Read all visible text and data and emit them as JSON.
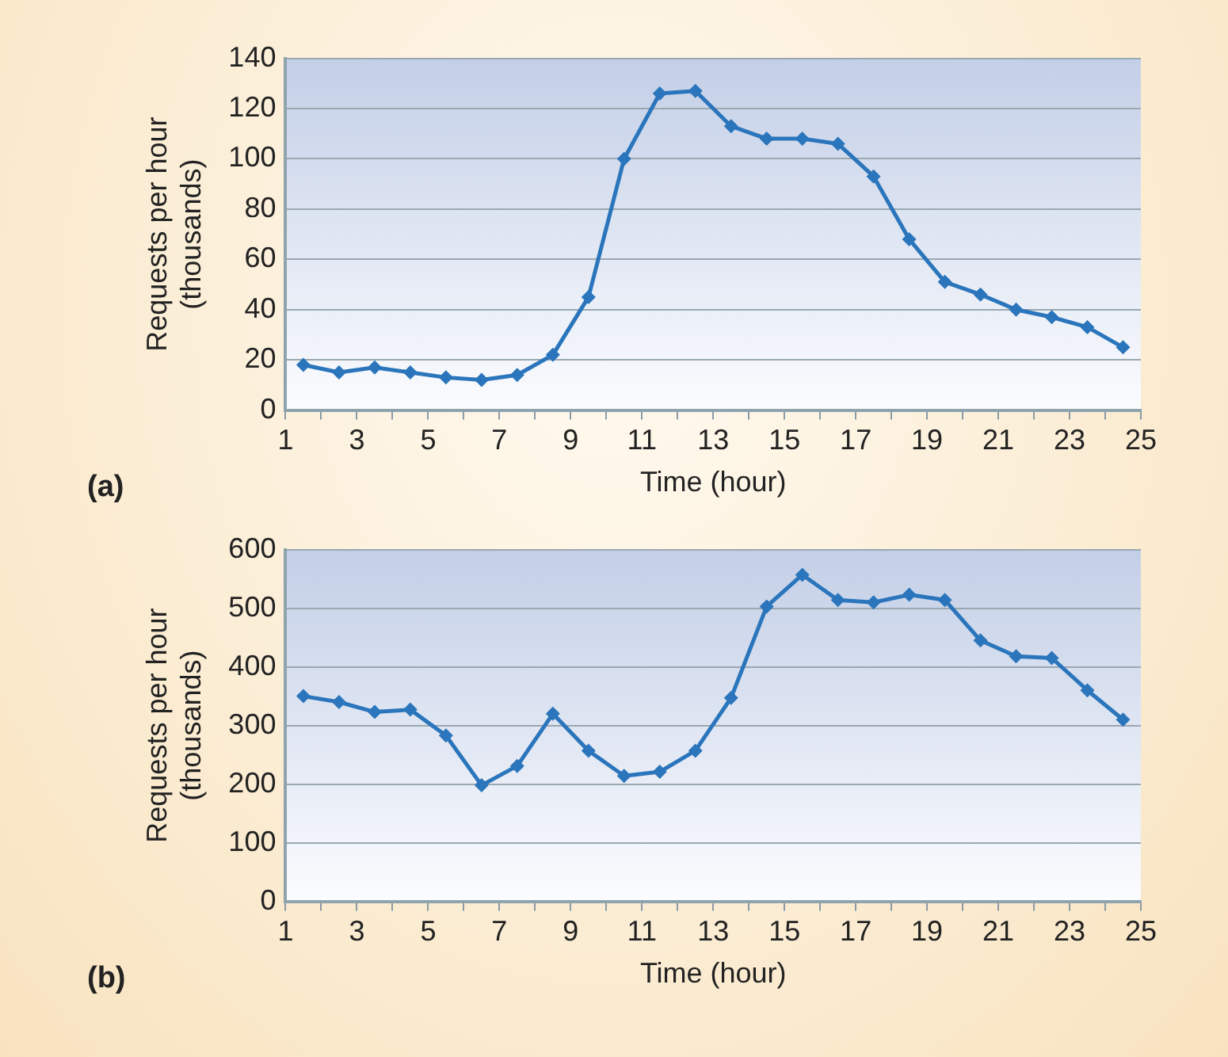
{
  "chart_data": [
    {
      "type": "line",
      "xlabel": "Time (hour)",
      "ylabel": "Requests per hour\n(thousands)",
      "annotations": [
        "(a)"
      ],
      "x": [
        1.5,
        2.5,
        3.5,
        4.5,
        5.5,
        6.5,
        7.5,
        8.5,
        9.5,
        10.5,
        11.5,
        12.5,
        13.5,
        14.5,
        15.5,
        16.5,
        17.5,
        18.5,
        19.5,
        20.5,
        21.5,
        22.5,
        23.5,
        24.5
      ],
      "series": [
        {
          "color": "#2a75bb",
          "values": [
            18,
            15,
            17,
            15,
            13,
            12,
            14,
            22,
            45,
            100,
            126,
            127,
            113,
            108,
            108,
            106,
            93,
            68,
            51,
            46,
            40,
            37,
            33,
            25
          ]
        }
      ],
      "xlim": [
        1,
        25
      ],
      "xticks": [
        1,
        {
          "value": 2,
          "label": null
        },
        3,
        {
          "value": 4,
          "label": null
        },
        5,
        {
          "value": 6,
          "label": null
        },
        7,
        {
          "value": 8,
          "label": null
        },
        9,
        {
          "value": 10,
          "label": null
        },
        11,
        {
          "value": 12,
          "label": null
        },
        13,
        {
          "value": 14,
          "label": null
        },
        15,
        {
          "value": 16,
          "label": null
        },
        17,
        {
          "value": 18,
          "label": null
        },
        19,
        {
          "value": 20,
          "label": null
        },
        21,
        {
          "value": 22,
          "label": null
        },
        23,
        {
          "value": 24,
          "label": null
        },
        25
      ],
      "ylim": [
        0,
        140
      ],
      "yticks": [
        0,
        20,
        40,
        60,
        80,
        100,
        120,
        140
      ],
      "grid": "y",
      "legend": false,
      "marker": "diamond",
      "line_style": "solid"
    },
    {
      "type": "line",
      "xlabel": "Time (hour)",
      "ylabel": "Requests per hour\n(thousands)",
      "annotations": [
        "(b)"
      ],
      "x": [
        1.5,
        2.5,
        3.5,
        4.5,
        5.5,
        6.5,
        7.5,
        8.5,
        9.5,
        10.5,
        11.5,
        12.5,
        13.5,
        14.5,
        15.5,
        16.5,
        17.5,
        18.5,
        19.5,
        20.5,
        21.5,
        22.5,
        23.5,
        24.5
      ],
      "series": [
        {
          "color": "#2a75bb",
          "values": [
            350,
            340,
            323,
            327,
            283,
            198,
            231,
            320,
            257,
            214,
            221,
            257,
            347,
            503,
            557,
            514,
            510,
            523,
            514,
            445,
            418,
            415,
            360,
            310
          ]
        }
      ],
      "xlim": [
        1,
        25
      ],
      "xticks": [
        1,
        {
          "value": 2,
          "label": null
        },
        3,
        {
          "value": 4,
          "label": null
        },
        5,
        {
          "value": 6,
          "label": null
        },
        7,
        {
          "value": 8,
          "label": null
        },
        9,
        {
          "value": 10,
          "label": null
        },
        11,
        {
          "value": 12,
          "label": null
        },
        13,
        {
          "value": 14,
          "label": null
        },
        15,
        {
          "value": 16,
          "label": null
        },
        17,
        {
          "value": 18,
          "label": null
        },
        19,
        {
          "value": 20,
          "label": null
        },
        21,
        {
          "value": 22,
          "label": null
        },
        23,
        {
          "value": 24,
          "label": null
        },
        25
      ],
      "ylim": [
        0,
        600
      ],
      "yticks": [
        0,
        100,
        200,
        300,
        400,
        500,
        600
      ],
      "grid": "y",
      "legend": false,
      "marker": "diamond",
      "line_style": "solid"
    }
  ]
}
